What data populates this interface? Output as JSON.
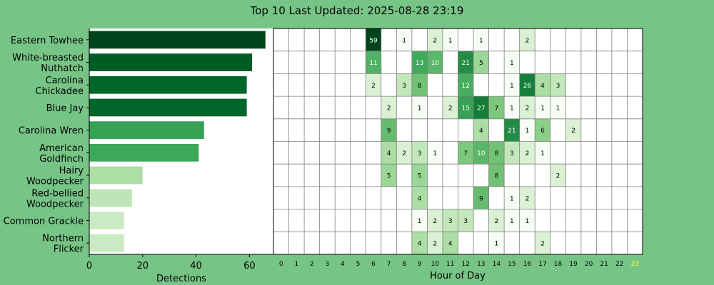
{
  "title": "Top 10 Last Updated: 2025-08-28 23:19",
  "colors": {
    "background": "#77c586",
    "current_hour": "#ffff44",
    "greens": [
      "#f7fcf5",
      "#e5f5e0",
      "#c7e9c0",
      "#a1d99b",
      "#74c476",
      "#41ab5d",
      "#238b45",
      "#006d2c",
      "#00441b"
    ]
  },
  "chart_data": [
    {
      "type": "bar",
      "orientation": "horizontal",
      "categories": [
        "Eastern Towhee",
        "White-breasted\nNuthatch",
        "Carolina\nChickadee",
        "Blue Jay",
        "Carolina Wren",
        "American\nGoldfinch",
        "Hairy\nWoodpecker",
        "Red-bellied\nWoodpecker",
        "Common Grackle",
        "Northern\nFlicker"
      ],
      "values": [
        66,
        61,
        59,
        59,
        43,
        41,
        20,
        16,
        13,
        13
      ],
      "xlabel": "Detections",
      "xlim": [
        0,
        69
      ],
      "xticks": [
        0,
        20,
        40,
        60
      ],
      "grid": false
    },
    {
      "type": "heatmap",
      "xlabel": "Hour of Day",
      "x": [
        0,
        1,
        2,
        3,
        4,
        5,
        6,
        7,
        8,
        9,
        10,
        11,
        12,
        13,
        14,
        15,
        16,
        17,
        18,
        19,
        20,
        21,
        22,
        23
      ],
      "current_hour": 23,
      "rows": [
        {
          "cells": [
            [
              6,
              59
            ],
            [
              8,
              1
            ],
            [
              10,
              2
            ],
            [
              11,
              1
            ],
            [
              13,
              1
            ],
            [
              16,
              2
            ]
          ]
        },
        {
          "cells": [
            [
              6,
              11
            ],
            [
              9,
              13
            ],
            [
              10,
              10
            ],
            [
              12,
              21
            ],
            [
              13,
              5
            ],
            [
              15,
              1
            ]
          ]
        },
        {
          "cells": [
            [
              6,
              2
            ],
            [
              8,
              3
            ],
            [
              9,
              8
            ],
            [
              12,
              12
            ],
            [
              15,
              1
            ],
            [
              16,
              26
            ],
            [
              17,
              4
            ],
            [
              18,
              3
            ]
          ]
        },
        {
          "cells": [
            [
              7,
              2
            ],
            [
              9,
              1
            ],
            [
              11,
              2
            ],
            [
              12,
              15
            ],
            [
              13,
              27
            ],
            [
              14,
              7
            ],
            [
              15,
              1
            ],
            [
              16,
              2
            ],
            [
              17,
              1
            ],
            [
              18,
              1
            ]
          ]
        },
        {
          "cells": [
            [
              7,
              9
            ],
            [
              13,
              4
            ],
            [
              15,
              21
            ],
            [
              16,
              1
            ],
            [
              17,
              6
            ],
            [
              19,
              2
            ]
          ]
        },
        {
          "cells": [
            [
              7,
              4
            ],
            [
              8,
              2
            ],
            [
              9,
              3
            ],
            [
              10,
              1
            ],
            [
              12,
              7
            ],
            [
              13,
              10
            ],
            [
              14,
              8
            ],
            [
              15,
              3
            ],
            [
              16,
              2
            ],
            [
              17,
              1
            ]
          ]
        },
        {
          "cells": [
            [
              7,
              5
            ],
            [
              9,
              5
            ],
            [
              14,
              8
            ],
            [
              18,
              2
            ]
          ]
        },
        {
          "cells": [
            [
              9,
              4
            ],
            [
              13,
              9
            ],
            [
              15,
              1
            ],
            [
              16,
              2
            ]
          ]
        },
        {
          "cells": [
            [
              9,
              1
            ],
            [
              10,
              2
            ],
            [
              11,
              3
            ],
            [
              12,
              3
            ],
            [
              14,
              2
            ],
            [
              15,
              1
            ],
            [
              16,
              1
            ]
          ]
        },
        {
          "cells": [
            [
              9,
              4
            ],
            [
              10,
              2
            ],
            [
              11,
              4
            ],
            [
              14,
              1
            ],
            [
              17,
              2
            ]
          ]
        }
      ]
    }
  ]
}
